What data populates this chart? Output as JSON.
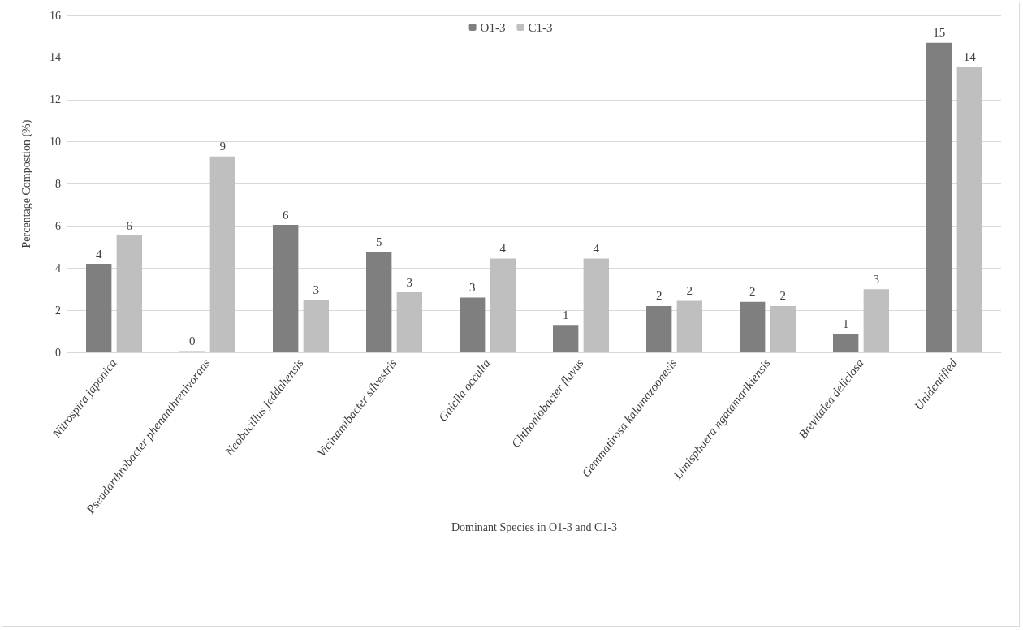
{
  "chart_data": {
    "type": "bar",
    "xlabel": "Dominant Species in O1-3 and C1-3",
    "ylabel": "Percentage Compostion (%)",
    "categories": [
      "Nitrospira japonica",
      "Pseudarthrobacter phenanthrenivorans",
      "Neobacillus jeddahensis",
      "Vicinamibacter silvestris",
      "Gaiella occulta",
      "Chthoniobacter flavus",
      "Gemmatirosa kalamazoonesis",
      "Limisphaera ngatamarikiensis",
      "Brevitalea deliciosa",
      "Unidentified"
    ],
    "series": [
      {
        "name": "O1-3",
        "color": "#7f7f7f",
        "values": [
          4.2,
          0.05,
          6.05,
          4.75,
          2.6,
          1.3,
          2.2,
          2.4,
          0.85,
          14.7
        ],
        "value_labels": [
          "4",
          "0",
          "6",
          "5",
          "3",
          "1",
          "2",
          "2",
          "1",
          "15"
        ]
      },
      {
        "name": "C1-3",
        "color": "#bfbfbf",
        "values": [
          5.55,
          9.3,
          2.5,
          2.85,
          4.45,
          4.45,
          2.45,
          2.2,
          3.0,
          13.55
        ],
        "value_labels": [
          "6",
          "9",
          "3",
          "3",
          "4",
          "4",
          "2",
          "2",
          "3",
          "14"
        ]
      }
    ],
    "ylim": [
      0,
      16
    ],
    "yticks": [
      0,
      2,
      4,
      6,
      8,
      10,
      12,
      14,
      16
    ],
    "grid": "y",
    "legend": "top"
  }
}
